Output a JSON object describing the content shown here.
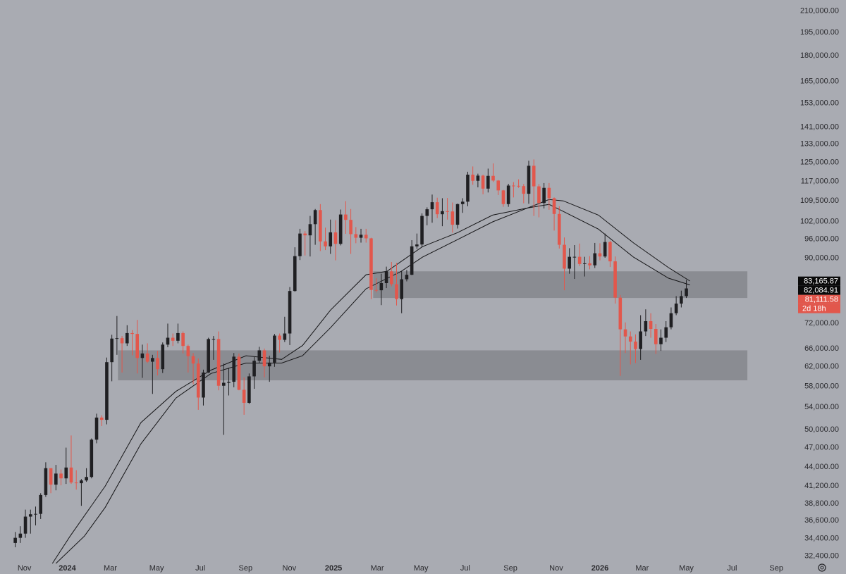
{
  "chart_data": {
    "type": "candlestick",
    "log_scale": true,
    "up_color": "#1f1f22",
    "down_color": "#e2574c",
    "ylim": [
      31600,
      218000
    ],
    "yticks": [
      {
        "value": 210000,
        "label": "210,000.00"
      },
      {
        "value": 195000,
        "label": "195,000.00"
      },
      {
        "value": 180000,
        "label": "180,000.00"
      },
      {
        "value": 165000,
        "label": "165,000.00"
      },
      {
        "value": 153000,
        "label": "153,000.00"
      },
      {
        "value": 141000,
        "label": "141,000.00"
      },
      {
        "value": 133000,
        "label": "133,000.00"
      },
      {
        "value": 125000,
        "label": "125,000.00"
      },
      {
        "value": 117000,
        "label": "117,000.00"
      },
      {
        "value": 109500,
        "label": "109,500.00"
      },
      {
        "value": 102000,
        "label": "102,000.00"
      },
      {
        "value": 96000,
        "label": "96,000.00"
      },
      {
        "value": 90000,
        "label": "90,000.00"
      },
      {
        "value": 72000,
        "label": "72,000.00"
      },
      {
        "value": 66000,
        "label": "66,000.00"
      },
      {
        "value": 62000,
        "label": "62,000.00"
      },
      {
        "value": 58000,
        "label": "58,000.00"
      },
      {
        "value": 54000,
        "label": "54,000.00"
      },
      {
        "value": 50000,
        "label": "50,000.00"
      },
      {
        "value": 47000,
        "label": "47,000.00"
      },
      {
        "value": 44000,
        "label": "44,000.00"
      },
      {
        "value": 41200,
        "label": "41,200.00"
      },
      {
        "value": 38800,
        "label": "38,800.00"
      },
      {
        "value": 36600,
        "label": "36,600.00"
      },
      {
        "value": 34400,
        "label": "34,400.00"
      },
      {
        "value": 32400,
        "label": "32,400.00"
      }
    ],
    "xlim": [
      -3,
      153
    ],
    "xticks": [
      {
        "value": 1.8,
        "label": "Nov"
      },
      {
        "value": 10.25,
        "label": "2024"
      },
      {
        "value": 18.7,
        "label": "Mar"
      },
      {
        "value": 27.8,
        "label": "May"
      },
      {
        "value": 36.4,
        "label": "Jul"
      },
      {
        "value": 45.3,
        "label": "Sep"
      },
      {
        "value": 53.9,
        "label": "Nov"
      },
      {
        "value": 62.6,
        "label": "2025"
      },
      {
        "value": 71.2,
        "label": "Mar"
      },
      {
        "value": 79.8,
        "label": "May"
      },
      {
        "value": 88.5,
        "label": "Jul"
      },
      {
        "value": 97.4,
        "label": "Sep"
      },
      {
        "value": 106.4,
        "label": "Nov"
      },
      {
        "value": 115.0,
        "label": "2026"
      },
      {
        "value": 123.3,
        "label": "Mar"
      },
      {
        "value": 132.0,
        "label": "May"
      },
      {
        "value": 141.0,
        "label": "Jul"
      },
      {
        "value": 149.7,
        "label": "Sep"
      }
    ],
    "open": [
      33900,
      34500,
      35000,
      37100,
      37400,
      37450,
      39950,
      43800,
      41400,
      43000,
      42300,
      43900,
      41700,
      41600,
      42000,
      42500,
      48300,
      52100,
      51700,
      63000,
      68300,
      68400,
      67200,
      69600,
      69400,
      63900,
      64900,
      63100,
      63900,
      61500,
      66900,
      68500,
      67800,
      69600,
      66600,
      64300,
      62700,
      55800,
      60800,
      68200,
      68200,
      58100,
      58700,
      58900,
      64200,
      57300,
      54800,
      60000,
      63300,
      65600,
      62100,
      62900,
      69000,
      68000,
      69500,
      80400,
      90600,
      97900,
      97300,
      101100,
      106100,
      95300,
      93700,
      98300,
      94500,
      104500,
      102600,
      97700,
      96500,
      97500,
      96300,
      80700,
      80600,
      82600,
      86000,
      82300,
      78200,
      83700,
      85000,
      93700,
      94300,
      104000,
      106400,
      109000,
      104600,
      105700,
      105600,
      100900,
      108300,
      109200,
      119800,
      117300,
      119400,
      114200,
      119300,
      117400,
      113500,
      108300,
      115400,
      115300,
      115200,
      112200,
      123500,
      115100,
      108700,
      114500,
      110500,
      104700,
      94200,
      86800,
      90400,
      90400,
      88200,
      88400,
      87800,
      91500,
      90500,
      95100,
      89000,
      78600,
      70500,
      68800,
      67600,
      65900,
      70000,
      72500,
      70600,
      67000,
      68500,
      71000,
      74500,
      77000,
      79000
    ],
    "high": [
      35200,
      35900,
      38000,
      38000,
      38400,
      40200,
      44700,
      43800,
      44300,
      43600,
      47000,
      49000,
      43500,
      42200,
      43800,
      48500,
      52800,
      52500,
      64000,
      69200,
      73800,
      68900,
      71500,
      70300,
      72800,
      66900,
      67200,
      64600,
      65500,
      67400,
      71900,
      69500,
      71900,
      70000,
      66900,
      65000,
      63800,
      61400,
      68500,
      68900,
      70000,
      62700,
      61800,
      65000,
      64900,
      59800,
      60600,
      64100,
      66400,
      66000,
      64400,
      69400,
      69500,
      73600,
      81500,
      93400,
      99500,
      98700,
      104000,
      106500,
      108300,
      99900,
      102700,
      102500,
      106300,
      109400,
      106500,
      100100,
      99500,
      99500,
      96500,
      84000,
      85300,
      87400,
      88800,
      88500,
      86100,
      86400,
      95700,
      97900,
      104900,
      107100,
      111900,
      110700,
      110500,
      110600,
      108900,
      108500,
      110500,
      121000,
      123200,
      120200,
      119800,
      122300,
      124500,
      117600,
      113700,
      116100,
      116800,
      117900,
      116000,
      125700,
      126200,
      116000,
      116400,
      116400,
      110800,
      107500,
      96600,
      93100,
      94100,
      94600,
      90400,
      90600,
      94800,
      94700,
      97900,
      95500,
      90500,
      79300,
      72200,
      70000,
      69300,
      74000,
      75500,
      74500,
      71800,
      70500,
      72500,
      76000,
      79000,
      80500,
      83500
    ],
    "low": [
      33400,
      33900,
      34500,
      35000,
      36000,
      36800,
      39700,
      40200,
      40600,
      41300,
      41500,
      41500,
      40700,
      38500,
      41800,
      42300,
      47700,
      50600,
      50900,
      59000,
      64600,
      60800,
      66600,
      64500,
      60600,
      59700,
      62800,
      56500,
      60200,
      60700,
      66300,
      66600,
      67200,
      64900,
      60800,
      58400,
      53500,
      54300,
      60700,
      63500,
      57200,
      49100,
      56200,
      57800,
      57200,
      52600,
      54600,
      57500,
      62800,
      59800,
      58900,
      62000,
      65100,
      67500,
      66800,
      80200,
      89400,
      90800,
      90500,
      94200,
      92200,
      92500,
      91300,
      89300,
      94000,
      97800,
      91300,
      94700,
      94900,
      94900,
      78200,
      80000,
      76600,
      81200,
      81700,
      76500,
      74500,
      83100,
      84900,
      92900,
      93400,
      100700,
      101600,
      103200,
      100400,
      102700,
      98200,
      99600,
      105100,
      107500,
      115700,
      114700,
      112000,
      112700,
      116800,
      111700,
      107300,
      107300,
      110800,
      114500,
      108600,
      108400,
      104000,
      103500,
      106700,
      106200,
      98900,
      93000,
      80600,
      85300,
      83800,
      87600,
      84500,
      86600,
      87000,
      89300,
      90100,
      87300,
      77000,
      60100,
      65000,
      62500,
      62800,
      63500,
      68900,
      68500,
      64800,
      65500,
      67500,
      70500,
      74000,
      76000,
      78500
    ],
    "close": [
      34500,
      35000,
      37100,
      37400,
      37450,
      39950,
      43800,
      41400,
      43000,
      42300,
      43900,
      41700,
      41600,
      42000,
      42500,
      48300,
      52100,
      51700,
      63000,
      68300,
      68400,
      67200,
      69600,
      69400,
      63900,
      64900,
      63100,
      63900,
      61500,
      66900,
      68500,
      67800,
      69600,
      66600,
      64300,
      62700,
      55800,
      60800,
      68200,
      68200,
      58100,
      58700,
      58900,
      64200,
      57300,
      54800,
      60000,
      63300,
      65600,
      62100,
      62900,
      69000,
      68000,
      69500,
      80400,
      90600,
      97900,
      97300,
      101100,
      106100,
      95300,
      93700,
      98300,
      94500,
      104500,
      102600,
      97700,
      96500,
      97500,
      96300,
      80700,
      80600,
      82600,
      86000,
      82300,
      78200,
      83700,
      85000,
      93700,
      94300,
      104000,
      106400,
      109000,
      104600,
      105700,
      105600,
      100900,
      108300,
      109200,
      119800,
      117300,
      119400,
      114200,
      119300,
      117400,
      113500,
      108300,
      115400,
      115300,
      115200,
      112200,
      123500,
      115100,
      108700,
      114500,
      110500,
      104700,
      94200,
      86800,
      90400,
      90400,
      88200,
      88400,
      87800,
      91500,
      90500,
      95100,
      89000,
      78600,
      70500,
      68800,
      67600,
      65900,
      70000,
      72500,
      70600,
      67000,
      68500,
      71000,
      74500,
      77000,
      79000,
      81111.58
    ],
    "lines": [
      {
        "color": "#151517",
        "x": [
          7.3,
          10.8,
          17.7,
          24.7,
          31.6,
          38.5,
          45.4,
          52.4,
          56.5,
          62.0,
          69.0,
          73.1,
          80.1,
          87.0,
          93.9,
          100.8,
          105.0,
          107.8,
          114.7,
          121.6,
          128.5,
          132.7
        ],
        "values": [
          31600,
          34700,
          41200,
          51200,
          57000,
          61300,
          64400,
          63600,
          66700,
          75300,
          85000,
          86000,
          93600,
          98200,
          104300,
          106900,
          108200,
          105600,
          99400,
          90300,
          84000,
          82100
        ]
      },
      {
        "color": "#151517",
        "x": [
          8.0,
          13.6,
          17.7,
          24.7,
          31.6,
          38.5,
          45.4,
          52.4,
          56.5,
          62.0,
          69.0,
          75.9,
          80.1,
          87.0,
          93.9,
          100.8,
          105.0,
          107.8,
          114.7,
          121.6,
          128.5,
          132.7
        ],
        "values": [
          31600,
          34700,
          38300,
          47600,
          55700,
          60600,
          62800,
          62800,
          64400,
          70900,
          81000,
          86000,
          90300,
          95900,
          101900,
          106900,
          110000,
          109500,
          104300,
          94800,
          87100,
          83200
        ]
      }
    ],
    "zones": [
      {
        "xmin": 70.4,
        "xmax": 144.0,
        "ymin": 78500,
        "ymax": 86000,
        "color": "#808187"
      },
      {
        "xmin": 20.2,
        "xmax": 144.0,
        "ymin": 59200,
        "ymax": 65600,
        "color": "#808187"
      }
    ],
    "price_labels": [
      {
        "value": 83165.87,
        "label": "83,165.87",
        "color": "#0a0a0a"
      },
      {
        "value": 82084.91,
        "label": "82,084.91",
        "color": "#0a0a0a"
      },
      {
        "value": 81111.58,
        "label": "81,111.58",
        "color": "#e2574c"
      }
    ],
    "countdown": "2d 18h"
  }
}
